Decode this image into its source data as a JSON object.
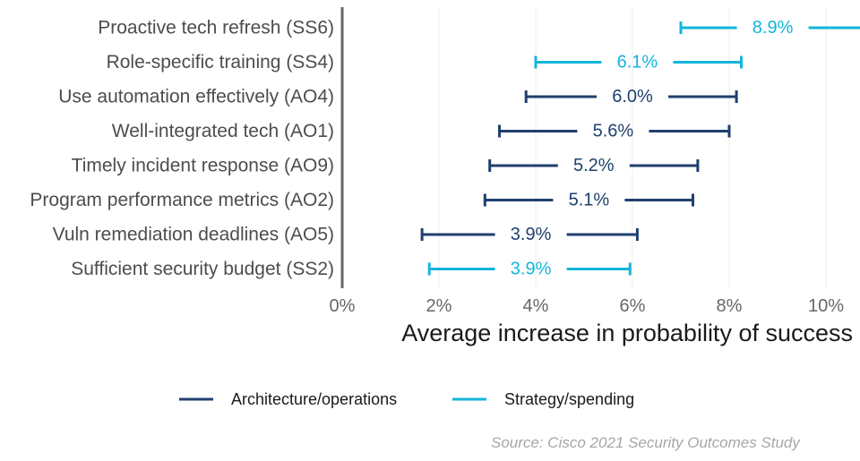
{
  "chart_data": {
    "type": "errorbar",
    "categories": [
      "Proactive tech refresh (SS6)",
      "Role-specific training (SS4)",
      "Use automation effectively (AO4)",
      "Well-integrated tech (AO1)",
      "Timely incident response (AO9)",
      "Program performance metrics (AO2)",
      "Vuln remediation deadlines (AO5)",
      "Sufficient security budget (SS2)"
    ],
    "points": [
      {
        "label": "8.9%",
        "value": 8.9,
        "low": 7.0,
        "high": 11.0,
        "group": "Strategy/spending"
      },
      {
        "label": "6.1%",
        "value": 6.1,
        "low": 4.0,
        "high": 8.25,
        "group": "Strategy/spending"
      },
      {
        "label": "6.0%",
        "value": 6.0,
        "low": 3.8,
        "high": 8.15,
        "group": "Architecture/operations"
      },
      {
        "label": "5.6%",
        "value": 5.6,
        "low": 3.25,
        "high": 8.0,
        "group": "Architecture/operations"
      },
      {
        "label": "5.2%",
        "value": 5.2,
        "low": 3.05,
        "high": 7.35,
        "group": "Architecture/operations"
      },
      {
        "label": "5.1%",
        "value": 5.1,
        "low": 2.95,
        "high": 7.25,
        "group": "Architecture/operations"
      },
      {
        "label": "3.9%",
        "value": 3.9,
        "low": 1.65,
        "high": 6.1,
        "group": "Architecture/operations"
      },
      {
        "label": "3.9%",
        "value": 3.9,
        "low": 1.8,
        "high": 5.95,
        "group": "Strategy/spending"
      }
    ],
    "xlim": [
      0,
      11
    ],
    "xticks": [
      0,
      2,
      4,
      6,
      8,
      10
    ],
    "xtick_labels": [
      "0%",
      "2%",
      "4%",
      "6%",
      "8%",
      "10%"
    ],
    "xlabel": "Average increase in probability of success",
    "grid": true,
    "legend": [
      {
        "name": "Architecture/operations",
        "color": "#1f3f6e"
      },
      {
        "name": "Strategy/spending",
        "color": "#13b5dc"
      }
    ],
    "legend_position": "bottom",
    "source": "Source: Cisco 2021 Security Outcomes Study"
  }
}
